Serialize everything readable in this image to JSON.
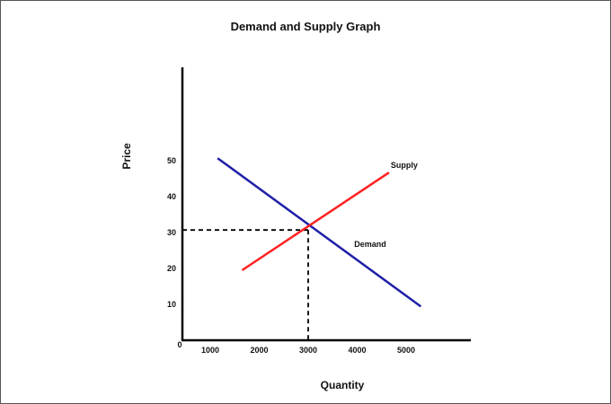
{
  "chart_data": {
    "type": "line",
    "title": "Demand and Supply Graph",
    "xlabel": "Quantity",
    "ylabel": "Price",
    "origin_label": "0",
    "x_ticks": [
      1000,
      2000,
      3000,
      4000,
      5000
    ],
    "y_ticks": [
      10,
      20,
      30,
      40,
      50
    ],
    "xlim": [
      0,
      6500
    ],
    "ylim": [
      0,
      85
    ],
    "grid": false,
    "series": [
      {
        "name": "Demand",
        "color": "#1f1fa8",
        "points": [
          [
            1150,
            50.7
          ],
          [
            5300,
            9.4
          ]
        ]
      },
      {
        "name": "Supply",
        "color": "#ff2020",
        "points": [
          [
            1650,
            19.5
          ],
          [
            4650,
            46.7
          ]
        ]
      }
    ],
    "equilibrium": {
      "x": 3000,
      "y": 30.7,
      "guide_style": "dashed"
    }
  }
}
